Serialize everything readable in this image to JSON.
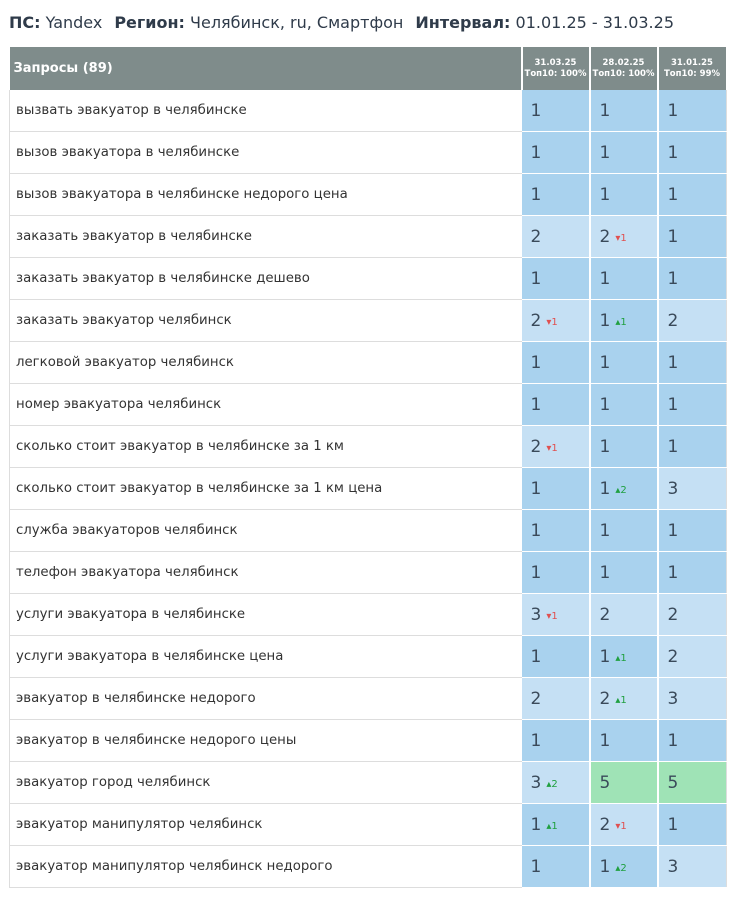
{
  "header": {
    "ps_label": "ПС:",
    "ps": "Yandex",
    "region_label": "Регион:",
    "region": "Челябинск, ru, Смартфон",
    "interval_label": "Интервал:",
    "interval": "01.01.25 - 31.03.25"
  },
  "table": {
    "query_header": "Запросы (89)",
    "columns": [
      {
        "date": "31.03.25",
        "top": "Топ10: 100%"
      },
      {
        "date": "28.02.25",
        "top": "Топ10: 100%"
      },
      {
        "date": "31.01.25",
        "top": "Топ10: 99%"
      }
    ],
    "rows": [
      {
        "query": "вызвать эвакуатор в челябинске",
        "cells": [
          {
            "pos": 1
          },
          {
            "pos": 1
          },
          {
            "pos": 1
          }
        ]
      },
      {
        "query": "вызов эвакуатора в челябинске",
        "cells": [
          {
            "pos": 1
          },
          {
            "pos": 1
          },
          {
            "pos": 1
          }
        ]
      },
      {
        "query": "вызов эвакуатора в челябинске недорого цена",
        "cells": [
          {
            "pos": 1
          },
          {
            "pos": 1
          },
          {
            "pos": 1
          }
        ]
      },
      {
        "query": "заказать эвакуатор в челябинске",
        "cells": [
          {
            "pos": 2
          },
          {
            "pos": 2,
            "change": 1,
            "trend": "down"
          },
          {
            "pos": 1
          }
        ]
      },
      {
        "query": "заказать эвакуатор в челябинске дешево",
        "cells": [
          {
            "pos": 1
          },
          {
            "pos": 1
          },
          {
            "pos": 1
          }
        ]
      },
      {
        "query": "заказать эвакуатор челябинск",
        "cells": [
          {
            "pos": 2,
            "change": 1,
            "trend": "down"
          },
          {
            "pos": 1,
            "change": 1,
            "trend": "up"
          },
          {
            "pos": 2
          }
        ]
      },
      {
        "query": "легковой эвакуатор челябинск",
        "cells": [
          {
            "pos": 1
          },
          {
            "pos": 1
          },
          {
            "pos": 1
          }
        ]
      },
      {
        "query": "номер эвакуатора челябинск",
        "cells": [
          {
            "pos": 1
          },
          {
            "pos": 1
          },
          {
            "pos": 1
          }
        ]
      },
      {
        "query": "сколько стоит эвакуатор в челябинске за 1 км",
        "cells": [
          {
            "pos": 2,
            "change": 1,
            "trend": "down"
          },
          {
            "pos": 1
          },
          {
            "pos": 1
          }
        ]
      },
      {
        "query": "сколько стоит эвакуатор в челябинске за 1 км цена",
        "cells": [
          {
            "pos": 1
          },
          {
            "pos": 1,
            "change": 2,
            "trend": "up"
          },
          {
            "pos": 3
          }
        ]
      },
      {
        "query": "служба эвакуаторов челябинск",
        "cells": [
          {
            "pos": 1
          },
          {
            "pos": 1
          },
          {
            "pos": 1
          }
        ]
      },
      {
        "query": "телефон эвакуатора челябинск",
        "cells": [
          {
            "pos": 1
          },
          {
            "pos": 1
          },
          {
            "pos": 1
          }
        ]
      },
      {
        "query": "услуги эвакуатора в челябинске",
        "cells": [
          {
            "pos": 3,
            "change": 1,
            "trend": "down"
          },
          {
            "pos": 2
          },
          {
            "pos": 2
          }
        ]
      },
      {
        "query": "услуги эвакуатора в челябинске цена",
        "cells": [
          {
            "pos": 1
          },
          {
            "pos": 1,
            "change": 1,
            "trend": "up"
          },
          {
            "pos": 2
          }
        ]
      },
      {
        "query": "эвакуатор в челябинске недорого",
        "cells": [
          {
            "pos": 2
          },
          {
            "pos": 2,
            "change": 1,
            "trend": "up"
          },
          {
            "pos": 3
          }
        ]
      },
      {
        "query": "эвакуатор в челябинске недорого цены",
        "cells": [
          {
            "pos": 1
          },
          {
            "pos": 1
          },
          {
            "pos": 1
          }
        ]
      },
      {
        "query": "эвакуатор город челябинск",
        "cells": [
          {
            "pos": 3,
            "change": 2,
            "trend": "up"
          },
          {
            "pos": 5
          },
          {
            "pos": 5
          }
        ]
      },
      {
        "query": "эвакуатор манипулятор челябинск",
        "cells": [
          {
            "pos": 1,
            "change": 1,
            "trend": "up"
          },
          {
            "pos": 2,
            "change": 1,
            "trend": "down"
          },
          {
            "pos": 1
          }
        ]
      },
      {
        "query": "эвакуатор манипулятор челябинск недорого",
        "cells": [
          {
            "pos": 1
          },
          {
            "pos": 1,
            "change": 2,
            "trend": "up"
          },
          {
            "pos": 3
          }
        ]
      }
    ]
  }
}
